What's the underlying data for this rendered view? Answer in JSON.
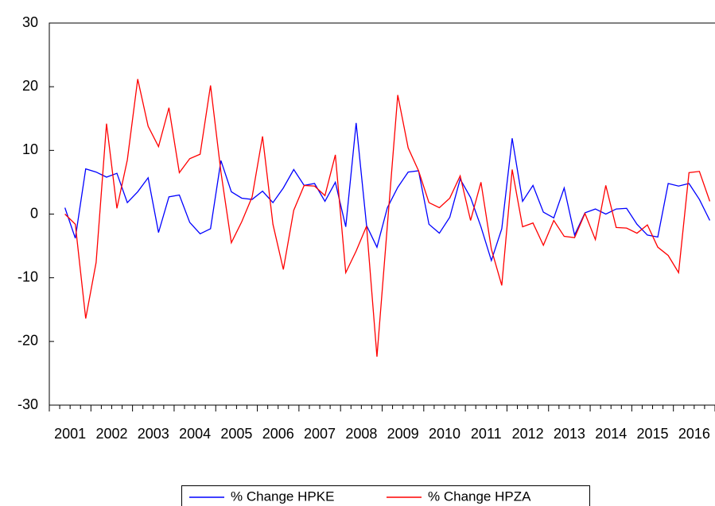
{
  "chart_data": {
    "type": "line",
    "categories": [
      "2001",
      null,
      null,
      null,
      "2002",
      null,
      null,
      null,
      "2003",
      null,
      null,
      null,
      "2004",
      null,
      null,
      null,
      "2005",
      null,
      null,
      null,
      "2006",
      null,
      null,
      null,
      "2007",
      null,
      null,
      null,
      "2008",
      null,
      null,
      null,
      "2009",
      null,
      null,
      null,
      "2010",
      null,
      null,
      null,
      "2011",
      null,
      null,
      null,
      "2012",
      null,
      null,
      null,
      "2013",
      null,
      null,
      null,
      "2014",
      null,
      null,
      null,
      "2015",
      null,
      null,
      null,
      "2016",
      null,
      null,
      null
    ],
    "series": [
      {
        "name": "% Change HPKE",
        "color": "#0000ff",
        "values": [
          null,
          1.0,
          -3.8,
          7.1,
          6.6,
          5.8,
          6.4,
          1.8,
          3.5,
          5.7,
          -2.9,
          2.7,
          3.0,
          -1.3,
          -3.1,
          -2.3,
          8.4,
          3.5,
          2.5,
          2.3,
          3.6,
          1.8,
          4.1,
          7.0,
          4.5,
          4.8,
          2.0,
          5.0,
          -2.0,
          14.3,
          -1.8,
          -5.2,
          1.0,
          4.2,
          6.6,
          6.8,
          -1.6,
          -3.0,
          -0.5,
          5.5,
          2.6,
          -2.0,
          -7.3,
          -2.3,
          11.9,
          2.0,
          4.5,
          0.3,
          -0.6,
          4.1,
          -3.3,
          0.2,
          0.8,
          0.0,
          0.8,
          0.9,
          -1.6,
          -3.3,
          -3.6,
          4.8,
          4.4,
          4.8,
          2.3,
          -1.0
        ]
      },
      {
        "name": "% Change HPZA",
        "color": "#ff0000",
        "values": [
          null,
          0.0,
          -1.6,
          -16.4,
          -7.6,
          14.2,
          0.9,
          8.5,
          21.2,
          13.8,
          10.6,
          16.7,
          6.5,
          8.7,
          9.4,
          20.2,
          6.6,
          -4.5,
          -1.2,
          2.7,
          12.2,
          -1.6,
          -8.7,
          0.6,
          4.5,
          4.4,
          2.9,
          9.3,
          -9.2,
          -5.8,
          -1.9,
          -22.4,
          -1.8,
          18.7,
          10.4,
          6.8,
          1.8,
          1.0,
          2.5,
          6.0,
          -1.0,
          5.0,
          -5.5,
          -11.2,
          7.0,
          -2.0,
          -1.4,
          -4.9,
          -1.0,
          -3.5,
          -3.7,
          0.1,
          -4.0,
          4.5,
          -2.1,
          -2.2,
          -3.0,
          -1.7,
          -5.2,
          -6.5,
          -9.2,
          6.5,
          6.7,
          2.0
        ]
      }
    ],
    "ylim": [
      -30,
      30
    ],
    "yticks": [
      -30,
      -20,
      -10,
      0,
      10,
      20,
      30
    ],
    "grid": false
  }
}
